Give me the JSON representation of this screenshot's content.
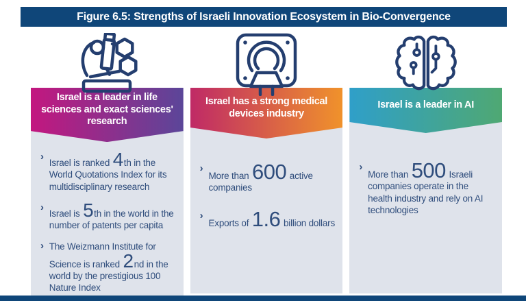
{
  "title": "Figure 6.5: Strengths of Israeli Innovation Ecosystem in Bio-Convergence",
  "colors": {
    "banner_navy": "#0f4679",
    "bottom_bar_navy": "#0f4679",
    "icon_stroke_navy": "#243e6f",
    "card_background": "#dfe3eb",
    "body_text_navy": "#2f4d7c"
  },
  "columns": [
    {
      "icon": "microscope-molecules-icon",
      "header": "Israel is a leader in life sciences and exact sciences' research",
      "gradient": [
        "#c3177f",
        "#5b4699"
      ],
      "bullets": [
        [
          {
            "text": "Israel is ranked "
          },
          {
            "text": "4",
            "big": true
          },
          {
            "text": "th in the World Quotations Index for its multidisciplinary research"
          }
        ],
        [
          {
            "text": "Israel is "
          },
          {
            "text": "5",
            "big": true
          },
          {
            "text": "th in the world in the number of patents per capita"
          }
        ],
        [
          {
            "text": "The Weizmann Institute for Science is ranked "
          },
          {
            "text": "2",
            "big": true
          },
          {
            "text": "nd in the world by the prestigious 100 Nature Index"
          }
        ]
      ]
    },
    {
      "icon": "mri-scanner-icon",
      "header": "Israel has a strong medical devices industry",
      "gradient": [
        "#bf2a66",
        "#f0922b"
      ],
      "bullets": [
        [
          {
            "text": "More than "
          },
          {
            "text": "600",
            "big": true
          },
          {
            "text": " active companies"
          }
        ],
        [
          {
            "text": "Exports of "
          },
          {
            "text": "1.6",
            "big": true
          },
          {
            "text": " billion dollars"
          }
        ]
      ]
    },
    {
      "icon": "ai-brain-icon",
      "header": "Israel is a leader in AI",
      "gradient": [
        "#2f9fc9",
        "#4fa873"
      ],
      "bullets": [
        [
          {
            "text": "More than "
          },
          {
            "text": "500",
            "big": true
          },
          {
            "text": " Israeli companies operate in the health industry and rely on AI technologies"
          }
        ]
      ]
    }
  ],
  "bullet_marker": "›"
}
